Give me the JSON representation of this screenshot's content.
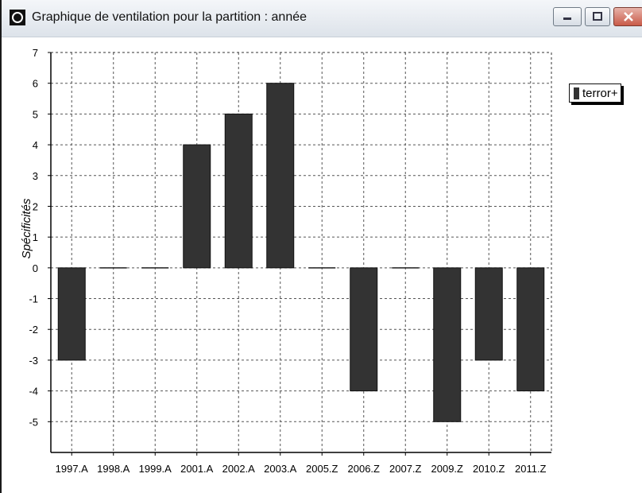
{
  "window": {
    "title": "Graphique de ventilation pour la partition : année"
  },
  "icons": {
    "app": "app-logo-icon",
    "minimize": "minimize-icon",
    "maximize": "maximize-icon",
    "close": "close-icon"
  },
  "colors": {
    "bar": "#333333",
    "grid": "#555555"
  },
  "chart_data": {
    "type": "bar",
    "categories": [
      "1997.A",
      "1998.A",
      "1999.A",
      "2001.A",
      "2002.A",
      "2003.A",
      "2005.Z",
      "2006.Z",
      "2007.Z",
      "2009.Z",
      "2010.Z",
      "2011.Z"
    ],
    "series": [
      {
        "name": "terror+",
        "values": [
          -3,
          0,
          0,
          4,
          5,
          6,
          0,
          -4,
          0,
          -5,
          -3,
          -4
        ]
      }
    ],
    "ylabel": "Spécificités",
    "ylim": [
      -6,
      7
    ],
    "yticks": [
      -5,
      -4,
      -3,
      -2,
      -1,
      0,
      1,
      2,
      3,
      4,
      5,
      6,
      7
    ],
    "grid": true,
    "legend_position": "top-right"
  }
}
